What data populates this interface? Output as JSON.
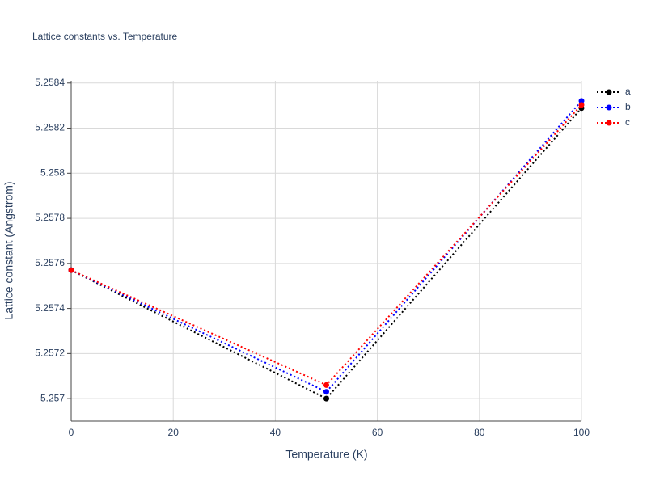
{
  "chart_data": {
    "type": "line",
    "title": "Lattice constants vs. Temperature",
    "x_label": "Temperature (K)",
    "y_label": "Lattice constant (Angstrom)",
    "x": [
      0,
      50,
      100
    ],
    "series": [
      {
        "name": "a",
        "color": "#000000",
        "values": [
          5.25757,
          5.257,
          5.258289
        ]
      },
      {
        "name": "b",
        "color": "#0000ff",
        "values": [
          5.25757,
          5.25703,
          5.258321
        ]
      },
      {
        "name": "c",
        "color": "#ff0000",
        "values": [
          5.25757,
          5.25706,
          5.258303
        ]
      }
    ],
    "xlim": [
      0,
      100
    ],
    "xticks": [
      0,
      20,
      40,
      60,
      80,
      100
    ],
    "ylim": [
      5.2569,
      5.25841
    ],
    "yticks": [
      5.257,
      5.2572,
      5.2574,
      5.2576,
      5.2578,
      5.258,
      5.2582,
      5.2584
    ],
    "grid": true,
    "legend": "right",
    "line_style": "dotted"
  }
}
